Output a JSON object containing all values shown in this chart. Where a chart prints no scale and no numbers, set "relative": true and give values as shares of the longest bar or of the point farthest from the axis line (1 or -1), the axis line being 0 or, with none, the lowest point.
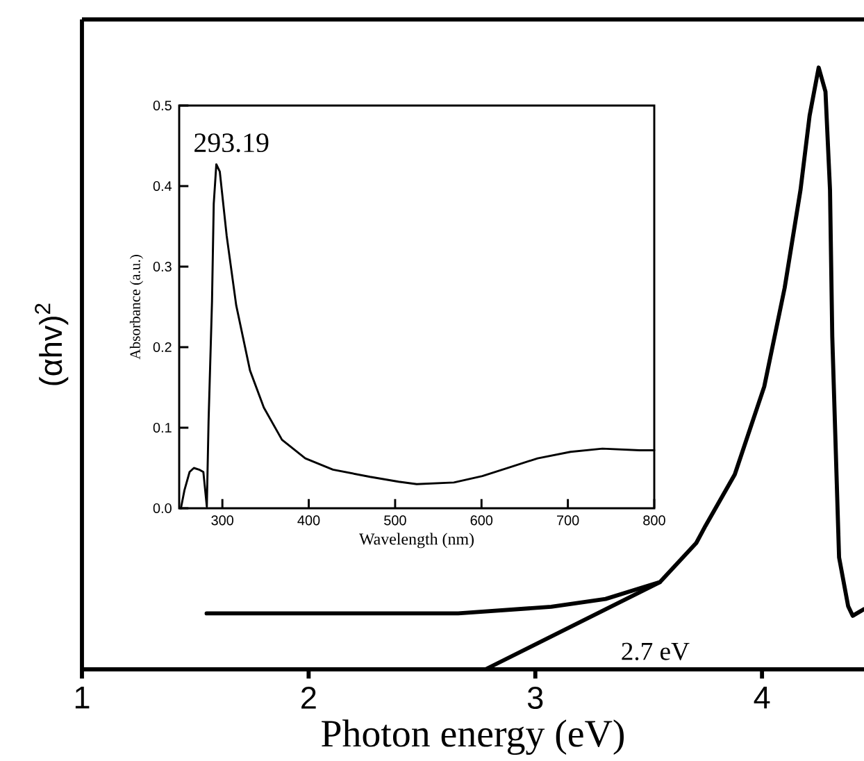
{
  "chart_data": [
    {
      "type": "line",
      "relative": true,
      "xlabel": "Photon energy (eV)",
      "ylabel": "(αhv)$^{2}$",
      "xlim": [
        1,
        4.45
      ],
      "xticks": [
        1,
        2,
        3,
        4
      ],
      "annotations": [
        "2.7 eV"
      ],
      "series": [
        {
          "color": "#000000",
          "x": [
            1.55,
            2.66,
            3.07,
            3.31,
            3.55,
            3.71,
            3.75,
            3.88,
            4.01,
            4.1,
            4.17,
            4.21,
            4.25,
            4.28,
            4.3,
            4.31,
            4.33,
            4.34,
            4.38,
            4.4,
            4.45
          ],
          "values": [
            0.093,
            0.093,
            0.104,
            0.117,
            0.145,
            0.21,
            0.238,
            0.324,
            0.47,
            0.634,
            0.797,
            0.92,
            1.0,
            0.96,
            0.797,
            0.553,
            0.308,
            0.186,
            0.105,
            0.089,
            0.1
          ]
        },
        {
          "color": "#000000",
          "x": [
            2.78,
            3.55
          ],
          "values": [
            0,
            0.145
          ]
        }
      ]
    },
    {
      "type": "line",
      "xlabel": "Wavelength (nm)",
      "ylabel": "Absorbance (a.u.)",
      "xlim": [
        250,
        800
      ],
      "ylim": [
        0,
        0.5
      ],
      "xticks": [
        300,
        400,
        500,
        600,
        700,
        800
      ],
      "yticks": [
        {
          "value": 0,
          "label": "0.0"
        },
        0.1,
        0.2,
        0.3,
        0.4,
        0.5
      ],
      "annotations": [
        {
          "text": "293.19",
          "x": 293,
          "y": 0.427
        }
      ],
      "series": [
        {
          "color": "#000000",
          "x": [
            252,
            256,
            262,
            267,
            273,
            278,
            282,
            284,
            288,
            290,
            293,
            297,
            305,
            316,
            332,
            348,
            369,
            396,
            428,
            471,
            504,
            525,
            568,
            601,
            633,
            665,
            703,
            740,
            783,
            800
          ],
          "values": [
            0,
            0.022,
            0.045,
            0.05,
            0.048,
            0.045,
            0.002,
            0.108,
            0.257,
            0.378,
            0.427,
            0.418,
            0.338,
            0.252,
            0.171,
            0.125,
            0.085,
            0.062,
            0.048,
            0.039,
            0.033,
            0.03,
            0.032,
            0.04,
            0.051,
            0.062,
            0.07,
            0.074,
            0.072,
            0.072
          ]
        }
      ]
    }
  ]
}
